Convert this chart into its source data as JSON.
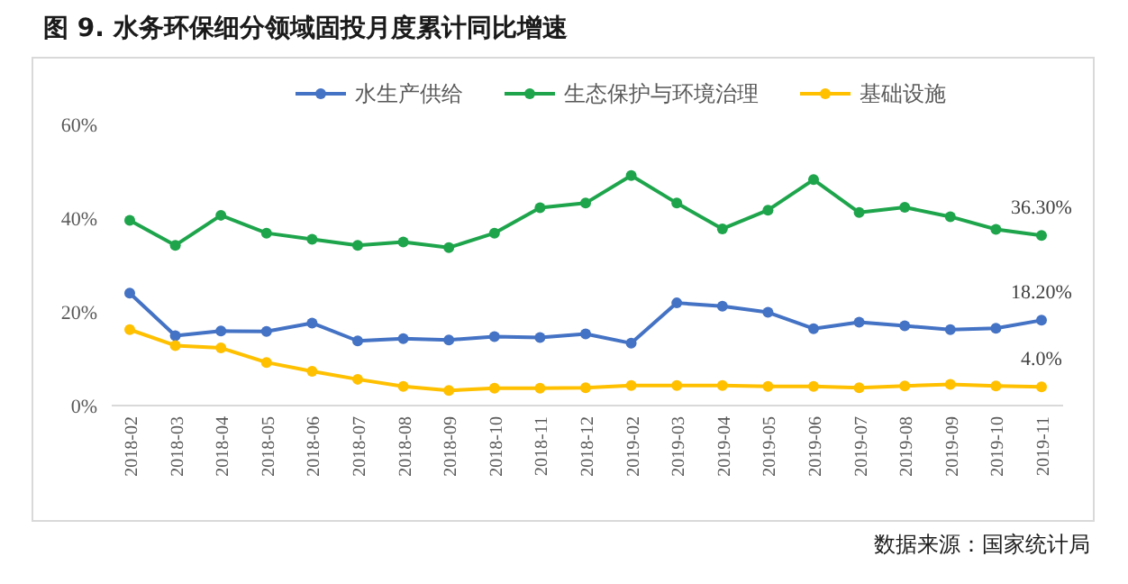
{
  "chart_data": {
    "type": "line",
    "title": "图 9. 水务环保细分领域固投月度累计同比增速",
    "categories": [
      "2018-02",
      "2018-03",
      "2018-04",
      "2018-05",
      "2018-06",
      "2018-07",
      "2018-08",
      "2018-09",
      "2018-10",
      "2018-11",
      "2018-12",
      "2019-02",
      "2019-03",
      "2019-04",
      "2019-05",
      "2019-06",
      "2019-07",
      "2019-08",
      "2019-09",
      "2019-10",
      "2019-11"
    ],
    "series": [
      {
        "name": "水生产供给",
        "color": "#4472c4",
        "values": [
          24.0,
          14.9,
          15.9,
          15.8,
          17.6,
          13.8,
          14.3,
          14.0,
          14.7,
          14.5,
          15.3,
          13.3,
          21.9,
          21.2,
          19.9,
          16.4,
          17.8,
          17.0,
          16.2,
          16.5,
          18.2
        ],
        "value_labels": [
          null,
          null,
          null,
          null,
          null,
          null,
          null,
          null,
          null,
          null,
          null,
          null,
          null,
          null,
          null,
          null,
          null,
          null,
          null,
          null,
          "18.20%"
        ]
      },
      {
        "name": "生态保护与环境治理",
        "color": "#1ea54c",
        "values": [
          39.5,
          34.2,
          40.6,
          36.8,
          35.5,
          34.2,
          34.9,
          33.7,
          36.8,
          42.2,
          43.2,
          49.1,
          43.2,
          37.7,
          41.7,
          48.2,
          41.2,
          42.3,
          40.3,
          37.6,
          36.3
        ],
        "value_labels": [
          null,
          null,
          null,
          null,
          null,
          null,
          null,
          null,
          null,
          null,
          null,
          null,
          null,
          null,
          null,
          null,
          null,
          null,
          null,
          null,
          "36.30%"
        ]
      },
      {
        "name": "基础设施",
        "color": "#ffc000",
        "values": [
          16.2,
          12.8,
          12.3,
          9.2,
          7.3,
          5.6,
          4.1,
          3.2,
          3.7,
          3.7,
          3.8,
          4.3,
          4.3,
          4.3,
          4.1,
          4.1,
          3.8,
          4.2,
          4.5,
          4.2,
          4.0
        ],
        "value_labels": [
          null,
          null,
          null,
          null,
          null,
          null,
          null,
          null,
          null,
          null,
          null,
          null,
          null,
          null,
          null,
          null,
          null,
          null,
          null,
          null,
          "4.0%"
        ]
      }
    ],
    "ylim": [
      0,
      60
    ],
    "yticks": [
      {
        "value": 0,
        "label": "0%"
      },
      {
        "value": 20,
        "label": "20%"
      },
      {
        "value": 40,
        "label": "40%"
      },
      {
        "value": 60,
        "label": "60%"
      }
    ],
    "grid": false,
    "legend": "top",
    "marker": "circle",
    "annotations": [
      "数据来源：国家统计局"
    ]
  }
}
